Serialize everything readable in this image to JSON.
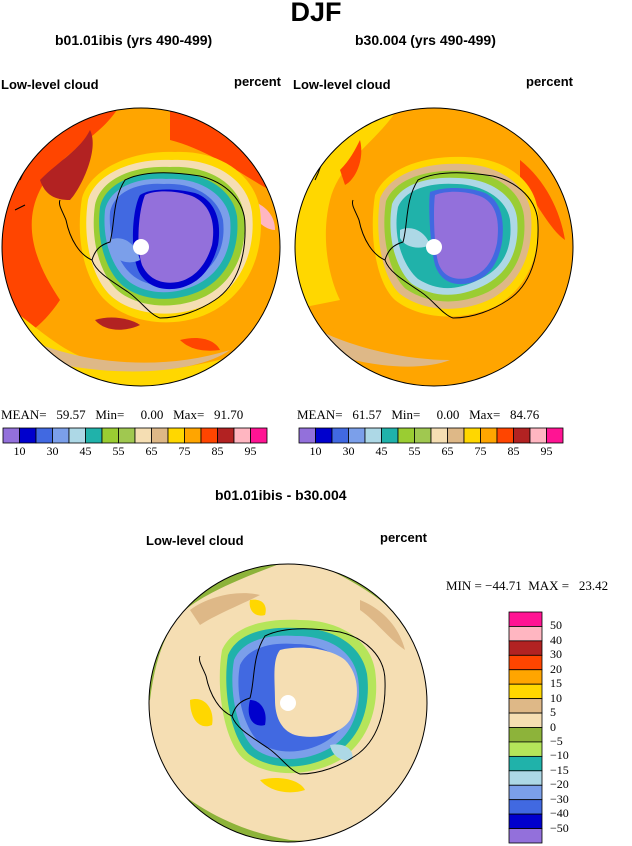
{
  "figure": {
    "title": "DJF"
  },
  "panel_left": {
    "title": "b01.01ibis (yrs 490-499)",
    "variable": "Low-level cloud",
    "units": "percent",
    "stats": "MEAN=   59.57   Min=     0.00   Max=   91.70"
  },
  "panel_right": {
    "title": "b30.004 (yrs 490-499)",
    "variable": "Low-level cloud",
    "units": "percent",
    "stats": "MEAN=   61.57   Min=     0.00   Max=   84.76"
  },
  "panel_diff": {
    "title": "b01.01ibis - b30.004",
    "variable": "Low-level cloud",
    "units": "percent",
    "stats": "MIN = −44.71  MAX =   23.42"
  },
  "colorbar_abs": {
    "colors": [
      "#9370DB",
      "#0000CD",
      "#4169E1",
      "#7B9FEA",
      "#ADD8E6",
      "#20B2AA",
      "#9ACD32",
      "#A0C850",
      "#F5DEB3",
      "#DEB887",
      "#FFD700",
      "#FFA500",
      "#FF4500",
      "#B22222",
      "#FFB6C1",
      "#FF1493"
    ],
    "labels": [
      "10",
      "30",
      "45",
      "55",
      "65",
      "75",
      "85",
      "95"
    ]
  },
  "colorbar_diff": {
    "colors": [
      "#FF1493",
      "#FFB6C1",
      "#B22222",
      "#FF4500",
      "#FFA500",
      "#FFD700",
      "#DEB887",
      "#F5DEB3",
      "#8DB33A",
      "#B5E55A",
      "#20B2AA",
      "#ADD8E6",
      "#7B9FEA",
      "#4169E1",
      "#0000CD",
      "#9370DB"
    ],
    "labels": [
      "50",
      "40",
      "30",
      "20",
      "15",
      "10",
      "5",
      "0",
      "−5",
      "−10",
      "−15",
      "−20",
      "−30",
      "−40",
      "−50"
    ]
  }
}
